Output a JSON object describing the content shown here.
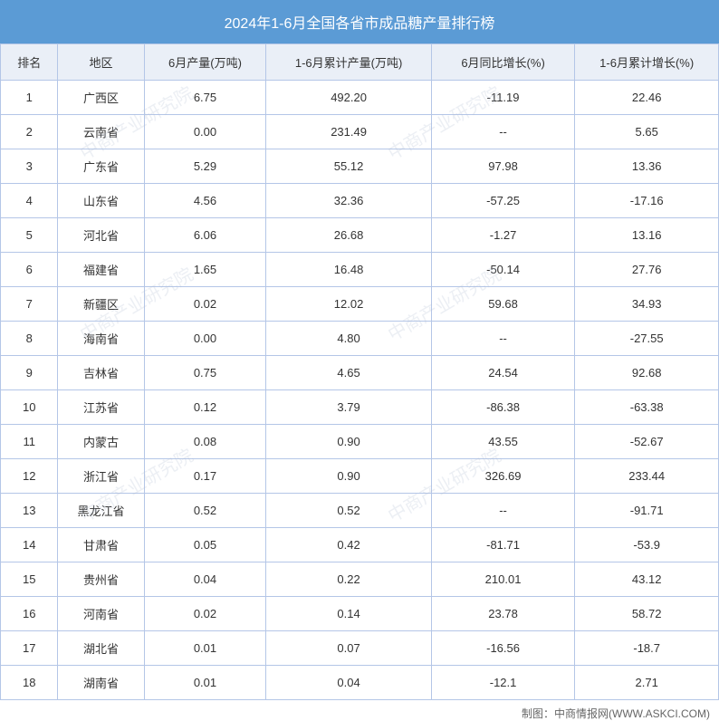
{
  "title": "2024年1-6月全国各省市成品糖产量排行榜",
  "columns": [
    "排名",
    "地区",
    "6月产量(万吨)",
    "1-6月累计产量(万吨)",
    "6月同比增长(%)",
    "1-6月累计增长(%)"
  ],
  "rows": [
    [
      "1",
      "广西区",
      "6.75",
      "492.20",
      "-11.19",
      "22.46"
    ],
    [
      "2",
      "云南省",
      "0.00",
      "231.49",
      "--",
      "5.65"
    ],
    [
      "3",
      "广东省",
      "5.29",
      "55.12",
      "97.98",
      "13.36"
    ],
    [
      "4",
      "山东省",
      "4.56",
      "32.36",
      "-57.25",
      "-17.16"
    ],
    [
      "5",
      "河北省",
      "6.06",
      "26.68",
      "-1.27",
      "13.16"
    ],
    [
      "6",
      "福建省",
      "1.65",
      "16.48",
      "-50.14",
      "27.76"
    ],
    [
      "7",
      "新疆区",
      "0.02",
      "12.02",
      "59.68",
      "34.93"
    ],
    [
      "8",
      "海南省",
      "0.00",
      "4.80",
      "--",
      "-27.55"
    ],
    [
      "9",
      "吉林省",
      "0.75",
      "4.65",
      "24.54",
      "92.68"
    ],
    [
      "10",
      "江苏省",
      "0.12",
      "3.79",
      "-86.38",
      "-63.38"
    ],
    [
      "11",
      "内蒙古",
      "0.08",
      "0.90",
      "43.55",
      "-52.67"
    ],
    [
      "12",
      "浙江省",
      "0.17",
      "0.90",
      "326.69",
      "233.44"
    ],
    [
      "13",
      "黑龙江省",
      "0.52",
      "0.52",
      "--",
      "-91.71"
    ],
    [
      "14",
      "甘肃省",
      "0.05",
      "0.42",
      "-81.71",
      "-53.9"
    ],
    [
      "15",
      "贵州省",
      "0.04",
      "0.22",
      "210.01",
      "43.12"
    ],
    [
      "16",
      "河南省",
      "0.02",
      "0.14",
      "23.78",
      "58.72"
    ],
    [
      "17",
      "湖北省",
      "0.01",
      "0.07",
      "-16.56",
      "-18.7"
    ],
    [
      "18",
      "湖南省",
      "0.01",
      "0.04",
      "-12.1",
      "2.71"
    ]
  ],
  "footer": "制图：中商情报网(WWW.ASKCI.COM)",
  "watermark_text": "中商产业研究院",
  "styling": {
    "title_bg": "#5b9bd5",
    "title_color": "#ffffff",
    "header_bg": "#eaeff7",
    "border_color": "#b4c6e7",
    "text_color": "#333333",
    "footer_color": "#666666",
    "title_fontsize": 16,
    "header_fontsize": 13,
    "cell_fontsize": 13,
    "footer_fontsize": 12
  }
}
